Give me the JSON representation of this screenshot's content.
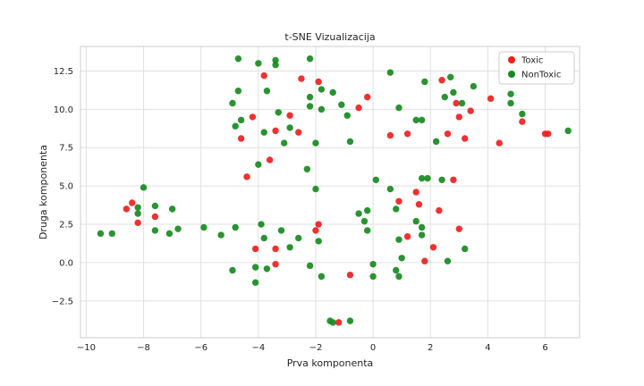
{
  "chart_data": {
    "type": "scatter",
    "title": "t-SNE Vizualizacija",
    "xlabel": "Prva komponenta",
    "ylabel": "Druga komponenta",
    "xlim": [
      -10.2,
      7.2
    ],
    "ylim": [
      -4.9,
      14.1
    ],
    "xticks": [
      -10,
      -8,
      -6,
      -4,
      -2,
      0,
      2,
      4,
      6
    ],
    "xtick_labels": [
      "−10",
      "−8",
      "−6",
      "−4",
      "−2",
      "0",
      "2",
      "4",
      "6"
    ],
    "yticks": [
      -2.5,
      0.0,
      2.5,
      5.0,
      7.5,
      10.0,
      12.5
    ],
    "ytick_labels": [
      "−2.5",
      "0.0",
      "2.5",
      "5.0",
      "7.5",
      "10.0",
      "12.5"
    ],
    "grid": true,
    "legend_position": "top-right",
    "series": [
      {
        "name": "Toxic",
        "color": "#ee1f1f",
        "points": [
          [
            -8.6,
            3.5
          ],
          [
            -8.4,
            3.9
          ],
          [
            -8.2,
            2.6
          ],
          [
            -7.6,
            3.0
          ],
          [
            -4.6,
            8.1
          ],
          [
            -4.4,
            5.6
          ],
          [
            -4.2,
            9.5
          ],
          [
            -4.1,
            0.9
          ],
          [
            -3.8,
            12.2
          ],
          [
            -3.6,
            6.7
          ],
          [
            -3.4,
            8.6
          ],
          [
            -3.4,
            0.9
          ],
          [
            -3.4,
            -0.1
          ],
          [
            -2.9,
            9.6
          ],
          [
            -2.6,
            8.5
          ],
          [
            -2.5,
            12.0
          ],
          [
            -2.0,
            2.1
          ],
          [
            -1.9,
            11.8
          ],
          [
            -1.9,
            2.5
          ],
          [
            -1.2,
            -3.9
          ],
          [
            -0.8,
            -0.8
          ],
          [
            -0.5,
            10.1
          ],
          [
            -0.2,
            10.8
          ],
          [
            0.6,
            8.3
          ],
          [
            0.9,
            4.0
          ],
          [
            1.2,
            8.4
          ],
          [
            1.2,
            1.7
          ],
          [
            1.5,
            4.6
          ],
          [
            1.6,
            3.8
          ],
          [
            1.8,
            0.1
          ],
          [
            2.1,
            1.0
          ],
          [
            2.3,
            3.4
          ],
          [
            2.4,
            11.9
          ],
          [
            2.6,
            8.4
          ],
          [
            2.8,
            5.4
          ],
          [
            2.9,
            10.4
          ],
          [
            3.0,
            9.5
          ],
          [
            3.0,
            2.2
          ],
          [
            3.2,
            8.1
          ],
          [
            3.4,
            9.9
          ],
          [
            4.1,
            10.7
          ],
          [
            4.4,
            7.8
          ],
          [
            5.2,
            9.2
          ],
          [
            6.0,
            8.4
          ],
          [
            6.1,
            8.4
          ]
        ]
      },
      {
        "name": "NonToxic",
        "color": "#178a1f",
        "points": [
          [
            -9.5,
            1.9
          ],
          [
            -9.1,
            1.9
          ],
          [
            -8.2,
            3.6
          ],
          [
            -8.2,
            3.2
          ],
          [
            -8.0,
            4.9
          ],
          [
            -7.6,
            3.7
          ],
          [
            -7.6,
            2.1
          ],
          [
            -7.1,
            1.9
          ],
          [
            -7.0,
            3.5
          ],
          [
            -6.8,
            2.2
          ],
          [
            -5.9,
            2.3
          ],
          [
            -5.3,
            1.8
          ],
          [
            -4.9,
            10.4
          ],
          [
            -4.9,
            -0.5
          ],
          [
            -4.8,
            2.3
          ],
          [
            -4.8,
            8.9
          ],
          [
            -4.7,
            11.2
          ],
          [
            -4.7,
            13.3
          ],
          [
            -4.6,
            9.3
          ],
          [
            -4.1,
            -0.3
          ],
          [
            -4.1,
            -1.3
          ],
          [
            -4.0,
            6.4
          ],
          [
            -4.0,
            13.0
          ],
          [
            -3.9,
            2.5
          ],
          [
            -3.8,
            1.6
          ],
          [
            -3.8,
            8.5
          ],
          [
            -3.7,
            -0.4
          ],
          [
            -3.7,
            11.2
          ],
          [
            -3.4,
            13.2
          ],
          [
            -3.4,
            12.9
          ],
          [
            -3.3,
            9.8
          ],
          [
            -3.2,
            2.1
          ],
          [
            -3.1,
            7.8
          ],
          [
            -2.9,
            1.0
          ],
          [
            -2.9,
            8.8
          ],
          [
            -2.6,
            1.6
          ],
          [
            -2.3,
            6.1
          ],
          [
            -2.2,
            10.2
          ],
          [
            -2.2,
            10.8
          ],
          [
            -2.2,
            13.3
          ],
          [
            -2.2,
            -0.2
          ],
          [
            -2.0,
            4.8
          ],
          [
            -2.0,
            7.8
          ],
          [
            -1.9,
            1.4
          ],
          [
            -1.8,
            11.3
          ],
          [
            -1.8,
            -0.9
          ],
          [
            -1.8,
            10.0
          ],
          [
            -1.5,
            -3.8
          ],
          [
            -1.4,
            -3.9
          ],
          [
            -1.4,
            11.1
          ],
          [
            -1.1,
            10.3
          ],
          [
            -0.9,
            9.6
          ],
          [
            -0.8,
            7.9
          ],
          [
            -0.8,
            -3.8
          ],
          [
            -0.5,
            3.2
          ],
          [
            -0.3,
            2.7
          ],
          [
            -0.2,
            2.1
          ],
          [
            -0.2,
            3.4
          ],
          [
            0.0,
            -0.1
          ],
          [
            0.0,
            -0.9
          ],
          [
            0.1,
            5.4
          ],
          [
            0.6,
            12.4
          ],
          [
            0.6,
            4.8
          ],
          [
            0.8,
            -0.5
          ],
          [
            0.8,
            3.5
          ],
          [
            0.9,
            1.5
          ],
          [
            0.9,
            10.1
          ],
          [
            0.9,
            -0.9
          ],
          [
            1.0,
            0.3
          ],
          [
            1.5,
            9.3
          ],
          [
            1.5,
            2.7
          ],
          [
            1.7,
            9.3
          ],
          [
            1.7,
            2.3
          ],
          [
            1.7,
            1.8
          ],
          [
            1.7,
            5.5
          ],
          [
            1.8,
            11.8
          ],
          [
            1.9,
            5.5
          ],
          [
            2.2,
            7.9
          ],
          [
            2.4,
            5.4
          ],
          [
            2.5,
            10.8
          ],
          [
            2.6,
            0.1
          ],
          [
            2.7,
            12.1
          ],
          [
            2.8,
            11.1
          ],
          [
            3.1,
            10.4
          ],
          [
            3.2,
            0.9
          ],
          [
            3.5,
            11.5
          ],
          [
            4.8,
            11.0
          ],
          [
            4.8,
            10.4
          ],
          [
            5.2,
            9.7
          ],
          [
            6.8,
            8.6
          ]
        ]
      }
    ]
  }
}
